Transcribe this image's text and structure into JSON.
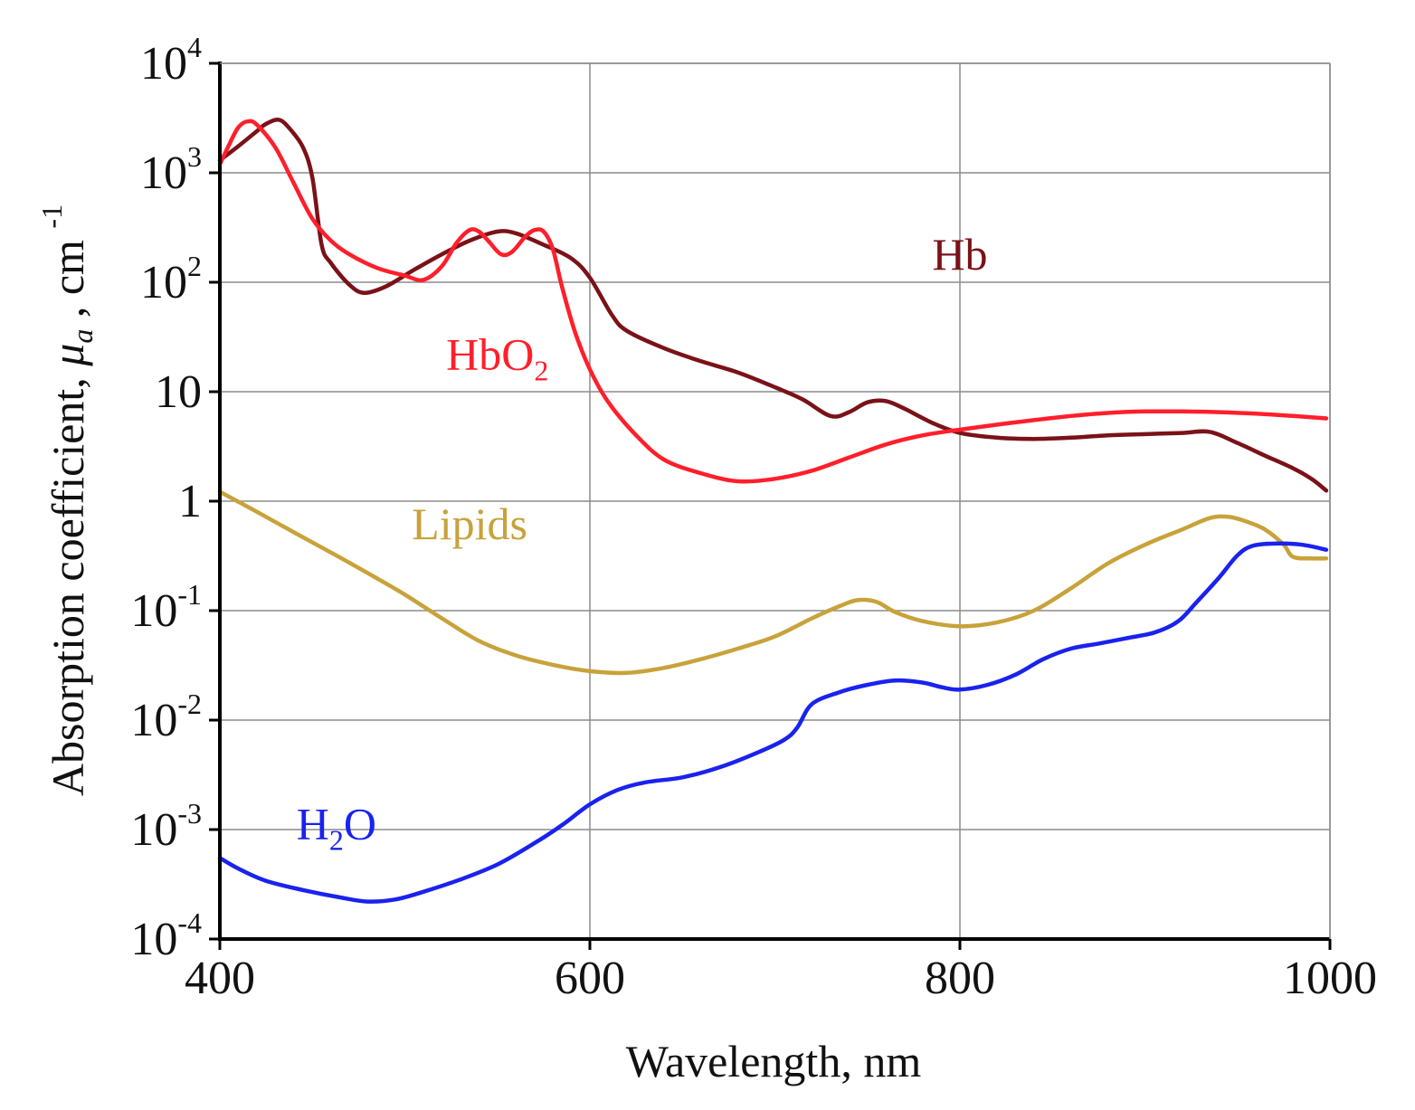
{
  "chart_data": {
    "type": "line",
    "title": "",
    "xlabel": "Wavelength, nm",
    "ylabel": "Absorption coefficient, μa , cm -1",
    "ylabel_parts": {
      "prefix": "Absorption coefficient, ",
      "symbol": "μ",
      "subscript": "a",
      "middle": " , cm ",
      "sup": "-1"
    },
    "xlim": [
      400,
      1000
    ],
    "ylim": [
      0.0001,
      10000
    ],
    "yscale": "log",
    "grid": true,
    "x_ticks": [
      {
        "value": 400,
        "label": "400"
      },
      {
        "value": 600,
        "label": "600"
      },
      {
        "value": 800,
        "label": "800"
      },
      {
        "value": 1000,
        "label": "1000"
      }
    ],
    "y_ticks": [
      {
        "value": 10000,
        "base": "10",
        "exp": "4"
      },
      {
        "value": 1000,
        "base": "10",
        "exp": "3"
      },
      {
        "value": 100,
        "base": "10",
        "exp": "2"
      },
      {
        "value": 10,
        "base": "10",
        "exp": ""
      },
      {
        "value": 1,
        "base": "1",
        "exp": ""
      },
      {
        "value": 0.1,
        "base": "10",
        "exp": "-1"
      },
      {
        "value": 0.01,
        "base": "10",
        "exp": "-2"
      },
      {
        "value": 0.001,
        "base": "10",
        "exp": "-3"
      },
      {
        "value": 0.0001,
        "base": "10",
        "exp": "-4"
      }
    ],
    "series": [
      {
        "name": "Hb",
        "label_main": "Hb",
        "label_sub": "",
        "label_tail": "",
        "label_at": [
          800,
          130
        ],
        "color": "#7a1218",
        "points": [
          [
            400,
            1300
          ],
          [
            410,
            1750
          ],
          [
            420,
            2400
          ],
          [
            425,
            2800
          ],
          [
            432,
            3050
          ],
          [
            438,
            2500
          ],
          [
            445,
            1700
          ],
          [
            450,
            900
          ],
          [
            455,
            220
          ],
          [
            460,
            150
          ],
          [
            470,
            95
          ],
          [
            478,
            80
          ],
          [
            490,
            92
          ],
          [
            505,
            130
          ],
          [
            520,
            180
          ],
          [
            535,
            240
          ],
          [
            550,
            290
          ],
          [
            560,
            280
          ],
          [
            575,
            220
          ],
          [
            590,
            165
          ],
          [
            600,
            110
          ],
          [
            612,
            50
          ],
          [
            620,
            36
          ],
          [
            640,
            25
          ],
          [
            660,
            19
          ],
          [
            680,
            15
          ],
          [
            700,
            11
          ],
          [
            715,
            8.5
          ],
          [
            730,
            6.0
          ],
          [
            740,
            6.5
          ],
          [
            750,
            8.0
          ],
          [
            760,
            8.2
          ],
          [
            770,
            7.0
          ],
          [
            785,
            5.2
          ],
          [
            800,
            4.2
          ],
          [
            820,
            3.8
          ],
          [
            840,
            3.7
          ],
          [
            860,
            3.8
          ],
          [
            880,
            4.0
          ],
          [
            900,
            4.1
          ],
          [
            920,
            4.2
          ],
          [
            935,
            4.3
          ],
          [
            950,
            3.4
          ],
          [
            965,
            2.6
          ],
          [
            980,
            2.0
          ],
          [
            990,
            1.6
          ],
          [
            998,
            1.25
          ]
        ]
      },
      {
        "name": "HbO2",
        "label_main": "HbO",
        "label_sub": "2",
        "label_tail": "",
        "label_at": [
          550,
          16
        ],
        "color": "#ff1f2b",
        "points": [
          [
            400,
            1200
          ],
          [
            405,
            1800
          ],
          [
            410,
            2600
          ],
          [
            415,
            2950
          ],
          [
            420,
            2750
          ],
          [
            430,
            1700
          ],
          [
            440,
            800
          ],
          [
            450,
            380
          ],
          [
            460,
            240
          ],
          [
            470,
            180
          ],
          [
            485,
            135
          ],
          [
            500,
            115
          ],
          [
            510,
            105
          ],
          [
            520,
            140
          ],
          [
            528,
            230
          ],
          [
            535,
            300
          ],
          [
            540,
            290
          ],
          [
            545,
            240
          ],
          [
            552,
            180
          ],
          [
            558,
            190
          ],
          [
            565,
            260
          ],
          [
            570,
            300
          ],
          [
            575,
            290
          ],
          [
            580,
            200
          ],
          [
            585,
            90
          ],
          [
            592,
            35
          ],
          [
            600,
            16
          ],
          [
            610,
            8
          ],
          [
            625,
            4
          ],
          [
            640,
            2.4
          ],
          [
            660,
            1.8
          ],
          [
            680,
            1.52
          ],
          [
            700,
            1.6
          ],
          [
            720,
            1.9
          ],
          [
            740,
            2.5
          ],
          [
            760,
            3.3
          ],
          [
            780,
            4.0
          ],
          [
            800,
            4.5
          ],
          [
            820,
            5.0
          ],
          [
            840,
            5.5
          ],
          [
            860,
            6.0
          ],
          [
            880,
            6.4
          ],
          [
            900,
            6.6
          ],
          [
            920,
            6.6
          ],
          [
            940,
            6.5
          ],
          [
            960,
            6.3
          ],
          [
            980,
            6.0
          ],
          [
            998,
            5.7
          ]
        ]
      },
      {
        "name": "Lipids",
        "label_main": "Lipids",
        "label_sub": "",
        "label_tail": "",
        "label_at": [
          535,
          0.45
        ],
        "color": "#c8a23a",
        "points": [
          [
            400,
            1.22
          ],
          [
            420,
            0.8
          ],
          [
            440,
            0.52
          ],
          [
            460,
            0.34
          ],
          [
            480,
            0.22
          ],
          [
            500,
            0.14
          ],
          [
            520,
            0.085
          ],
          [
            540,
            0.053
          ],
          [
            560,
            0.039
          ],
          [
            580,
            0.032
          ],
          [
            600,
            0.028
          ],
          [
            620,
            0.027
          ],
          [
            640,
            0.03
          ],
          [
            660,
            0.036
          ],
          [
            680,
            0.045
          ],
          [
            700,
            0.058
          ],
          [
            720,
            0.085
          ],
          [
            735,
            0.11
          ],
          [
            745,
            0.125
          ],
          [
            755,
            0.12
          ],
          [
            765,
            0.097
          ],
          [
            780,
            0.08
          ],
          [
            800,
            0.072
          ],
          [
            820,
            0.078
          ],
          [
            840,
            0.1
          ],
          [
            860,
            0.16
          ],
          [
            880,
            0.27
          ],
          [
            900,
            0.4
          ],
          [
            920,
            0.55
          ],
          [
            935,
            0.7
          ],
          [
            945,
            0.72
          ],
          [
            955,
            0.65
          ],
          [
            965,
            0.55
          ],
          [
            975,
            0.4
          ],
          [
            980,
            0.31
          ],
          [
            990,
            0.3
          ],
          [
            998,
            0.3
          ]
        ]
      },
      {
        "name": "H2O",
        "label_main": "H",
        "label_sub": "2",
        "label_tail": "O",
        "label_at": [
          463,
          0.00082
        ],
        "color": "#1a22ee",
        "points": [
          [
            400,
            0.00055
          ],
          [
            410,
            0.00044
          ],
          [
            425,
            0.00034
          ],
          [
            445,
            0.00028
          ],
          [
            465,
            0.00024
          ],
          [
            480,
            0.00022
          ],
          [
            495,
            0.00023
          ],
          [
            510,
            0.00027
          ],
          [
            530,
            0.00035
          ],
          [
            550,
            0.00048
          ],
          [
            570,
            0.00075
          ],
          [
            585,
            0.0011
          ],
          [
            600,
            0.0017
          ],
          [
            615,
            0.0023
          ],
          [
            630,
            0.0027
          ],
          [
            650,
            0.003
          ],
          [
            670,
            0.0037
          ],
          [
            690,
            0.005
          ],
          [
            705,
            0.0066
          ],
          [
            712,
            0.0085
          ],
          [
            720,
            0.014
          ],
          [
            735,
            0.018
          ],
          [
            750,
            0.021
          ],
          [
            765,
            0.023
          ],
          [
            780,
            0.022
          ],
          [
            790,
            0.02
          ],
          [
            800,
            0.019
          ],
          [
            815,
            0.021
          ],
          [
            830,
            0.026
          ],
          [
            845,
            0.036
          ],
          [
            860,
            0.045
          ],
          [
            875,
            0.05
          ],
          [
            890,
            0.056
          ],
          [
            905,
            0.063
          ],
          [
            918,
            0.08
          ],
          [
            928,
            0.12
          ],
          [
            940,
            0.2
          ],
          [
            950,
            0.32
          ],
          [
            958,
            0.39
          ],
          [
            970,
            0.41
          ],
          [
            985,
            0.4
          ],
          [
            998,
            0.36
          ]
        ]
      }
    ]
  }
}
